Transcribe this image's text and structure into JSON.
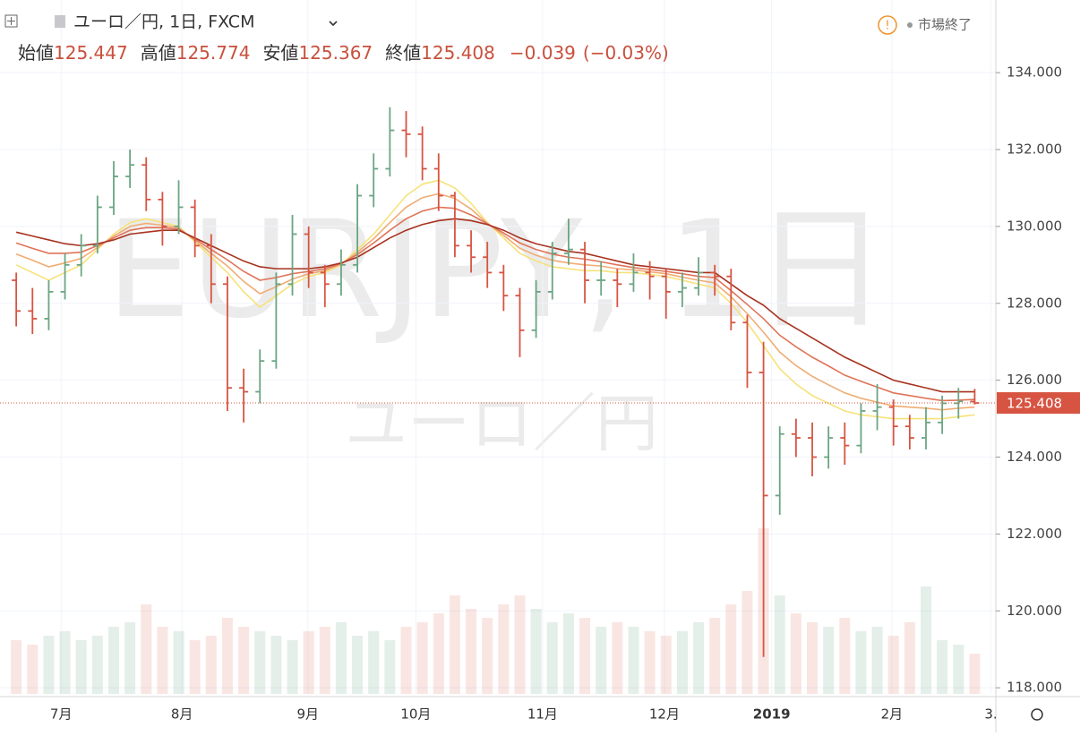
{
  "chart_data": {
    "type": "ohlc",
    "title": "ユーロ／円, 1日, FXCM",
    "status": "市場終了",
    "watermark": "EURJPY, 1日",
    "watermark_sub": "ユーロ／円",
    "legend_info": [
      {
        "label": "始値",
        "value": 125.447
      },
      {
        "label": "高値",
        "value": 125.774
      },
      {
        "label": "安値",
        "value": 125.367
      },
      {
        "label": "終値",
        "value": 125.408
      }
    ],
    "change": "−0.039",
    "change_pct": "(−0.03%)",
    "last_price": 125.408,
    "up_color": "#6ba583",
    "down_color": "#d75442",
    "xlim": [
      -1,
      60.3
    ],
    "xticks": [
      {
        "value": 2.76,
        "label": "7月"
      },
      {
        "value": 10.2,
        "label": "8月"
      },
      {
        "value": 17.95,
        "label": "9月"
      },
      {
        "value": 24.6,
        "label": "10月"
      },
      {
        "value": 32.4,
        "label": "11月"
      },
      {
        "value": 39.9,
        "label": "12月"
      },
      {
        "value": 46.5,
        "label": "2019"
      },
      {
        "value": 53.9,
        "label": "2月"
      },
      {
        "value": 60.0,
        "label": "3."
      }
    ],
    "ylim": [
      117.84,
      135.89
    ],
    "yticks": [
      {
        "value": 118,
        "label": "118.000"
      },
      {
        "value": 120,
        "label": "120.000"
      },
      {
        "value": 122,
        "label": "122.000"
      },
      {
        "value": 124,
        "label": "124.000"
      },
      {
        "value": 126,
        "label": "126.000"
      },
      {
        "value": 128,
        "label": "128.000"
      },
      {
        "value": 130,
        "label": "130.000"
      },
      {
        "value": 132,
        "label": "132.000"
      },
      {
        "value": 134,
        "label": "134.000"
      }
    ],
    "grid": true,
    "open": [
      128.6,
      127.8,
      127.6,
      128.3,
      129.0,
      129.5,
      130.5,
      131.3,
      131.6,
      130.7,
      130.0,
      130.5,
      129.5,
      128.5,
      125.8,
      125.7,
      126.5,
      128.5,
      129.8,
      128.8,
      128.5,
      129.0,
      130.8,
      131.5,
      132.5,
      132.4,
      131.5,
      130.8,
      129.5,
      129.2,
      128.8,
      128.2,
      127.3,
      128.3,
      129.3,
      129.4,
      128.6,
      128.6,
      128.5,
      128.8,
      128.7,
      128.3,
      128.4,
      128.8,
      128.7,
      127.5,
      126.2,
      123.0,
      124.6,
      124.5,
      124.0,
      124.5,
      124.3,
      125.2,
      125.3,
      124.8,
      124.5,
      124.9,
      125.4,
      125.447
    ],
    "high": [
      128.8,
      128.4,
      128.6,
      129.3,
      129.8,
      130.8,
      131.7,
      132.0,
      131.8,
      130.9,
      131.2,
      130.7,
      129.8,
      128.7,
      126.3,
      126.8,
      128.8,
      130.3,
      130.0,
      129.0,
      129.4,
      131.1,
      131.9,
      133.1,
      133.0,
      132.6,
      131.9,
      130.9,
      129.9,
      129.6,
      129.0,
      128.4,
      128.6,
      129.6,
      130.2,
      129.6,
      129.1,
      128.9,
      129.3,
      129.1,
      128.9,
      128.8,
      129.2,
      129.0,
      128.9,
      127.7,
      127.0,
      124.8,
      125.0,
      124.9,
      124.8,
      124.9,
      125.4,
      125.9,
      125.5,
      125.1,
      125.3,
      125.6,
      125.8,
      125.774
    ],
    "low": [
      127.4,
      127.2,
      127.3,
      128.1,
      128.7,
      129.3,
      130.3,
      131.0,
      130.4,
      129.5,
      129.8,
      129.2,
      128.0,
      125.2,
      124.9,
      125.4,
      126.3,
      128.2,
      128.4,
      127.9,
      128.2,
      128.8,
      130.5,
      131.3,
      131.8,
      131.2,
      130.4,
      129.2,
      128.8,
      128.4,
      127.8,
      126.6,
      127.1,
      128.1,
      129.0,
      128.0,
      128.2,
      127.9,
      128.3,
      128.1,
      127.6,
      127.9,
      128.2,
      128.2,
      127.3,
      125.8,
      118.8,
      122.5,
      124.0,
      123.5,
      123.7,
      123.8,
      124.1,
      124.7,
      124.3,
      124.2,
      124.2,
      124.6,
      125.0,
      125.367
    ],
    "close": [
      127.8,
      127.6,
      128.3,
      129.0,
      129.5,
      130.5,
      131.3,
      131.6,
      130.7,
      130.0,
      130.5,
      129.5,
      128.5,
      125.8,
      125.7,
      126.5,
      128.5,
      129.8,
      128.8,
      128.5,
      129.0,
      130.8,
      131.5,
      132.5,
      132.4,
      131.5,
      130.8,
      129.5,
      129.2,
      128.8,
      128.2,
      127.3,
      128.3,
      129.3,
      129.4,
      128.6,
      128.6,
      128.5,
      128.8,
      128.7,
      128.3,
      128.4,
      128.8,
      128.7,
      127.5,
      126.2,
      123.0,
      124.6,
      124.5,
      124.0,
      124.5,
      124.3,
      125.2,
      125.3,
      124.8,
      124.5,
      124.9,
      125.4,
      125.45,
      125.408
    ],
    "vlim": [
      0,
      200
    ],
    "volume": [
      60,
      55,
      65,
      70,
      60,
      65,
      75,
      80,
      100,
      75,
      70,
      60,
      65,
      85,
      75,
      70,
      65,
      60,
      70,
      75,
      80,
      65,
      70,
      60,
      75,
      80,
      90,
      110,
      95,
      85,
      100,
      110,
      95,
      80,
      90,
      85,
      75,
      80,
      75,
      70,
      65,
      70,
      80,
      85,
      100,
      115,
      185,
      110,
      90,
      80,
      75,
      85,
      70,
      75,
      65,
      80,
      120,
      60,
      55,
      45
    ],
    "series": [
      {
        "color": "#f6e27a",
        "values": [
          129.0,
          128.8,
          128.6,
          128.8,
          129.0,
          129.4,
          129.8,
          130.1,
          130.2,
          130.1,
          130.0,
          129.6,
          129.2,
          128.8,
          128.3,
          127.9,
          128.2,
          128.5,
          128.7,
          128.8,
          129.0,
          129.4,
          129.8,
          130.3,
          130.8,
          131.1,
          131.2,
          131.0,
          130.6,
          130.1,
          129.7,
          129.3,
          129.1,
          128.95,
          128.9,
          128.85,
          128.85,
          128.8,
          128.8,
          128.75,
          128.7,
          128.6,
          128.5,
          128.4,
          128.0,
          127.5,
          126.9,
          126.3,
          125.9,
          125.6,
          125.4,
          125.2,
          125.1,
          125.05,
          125.0,
          125.0,
          125.0,
          125.0,
          125.05,
          125.1
        ]
      },
      {
        "color": "#f0ac72",
        "values": [
          129.28,
          129.12,
          128.95,
          129.05,
          129.17,
          129.45,
          129.75,
          130.0,
          130.08,
          130.03,
          129.97,
          129.63,
          129.3,
          128.97,
          128.57,
          128.25,
          128.43,
          128.63,
          128.77,
          128.85,
          129.02,
          129.33,
          129.68,
          130.1,
          130.5,
          130.75,
          130.85,
          130.73,
          130.45,
          130.08,
          129.77,
          129.43,
          129.25,
          129.12,
          129.05,
          129.0,
          128.97,
          128.9,
          128.87,
          128.82,
          128.77,
          128.68,
          128.6,
          128.53,
          128.17,
          127.73,
          127.25,
          126.73,
          126.38,
          126.1,
          125.88,
          125.67,
          125.53,
          125.43,
          125.33,
          125.3,
          125.27,
          125.23,
          125.27,
          125.3
        ]
      },
      {
        "color": "#e07458",
        "values": [
          129.57,
          129.43,
          129.3,
          129.3,
          129.33,
          129.5,
          129.7,
          129.9,
          129.97,
          129.97,
          129.93,
          129.67,
          129.4,
          129.13,
          128.83,
          128.6,
          128.67,
          128.77,
          128.83,
          128.9,
          129.03,
          129.27,
          129.57,
          129.9,
          130.2,
          130.4,
          130.5,
          130.47,
          130.3,
          130.07,
          129.83,
          129.57,
          129.4,
          129.28,
          129.2,
          129.15,
          129.08,
          129.0,
          128.93,
          128.88,
          128.83,
          128.77,
          128.7,
          128.67,
          128.33,
          127.97,
          127.6,
          127.17,
          126.87,
          126.6,
          126.37,
          126.13,
          125.97,
          125.82,
          125.67,
          125.6,
          125.53,
          125.47,
          125.48,
          125.5
        ]
      },
      {
        "color": "#a8321f",
        "values": [
          129.85,
          129.75,
          129.65,
          129.55,
          129.5,
          129.55,
          129.65,
          129.8,
          129.85,
          129.9,
          129.9,
          129.7,
          129.5,
          129.3,
          129.1,
          128.95,
          128.9,
          128.9,
          128.9,
          128.95,
          129.05,
          129.2,
          129.45,
          129.7,
          129.9,
          130.05,
          130.15,
          130.2,
          130.15,
          130.05,
          129.9,
          129.7,
          129.55,
          129.45,
          129.35,
          129.3,
          129.2,
          129.1,
          129.0,
          128.95,
          128.9,
          128.85,
          128.8,
          128.8,
          128.5,
          128.2,
          127.95,
          127.6,
          127.35,
          127.1,
          126.85,
          126.6,
          126.4,
          126.2,
          126.0,
          125.9,
          125.8,
          125.7,
          125.7,
          125.7
        ]
      }
    ]
  }
}
